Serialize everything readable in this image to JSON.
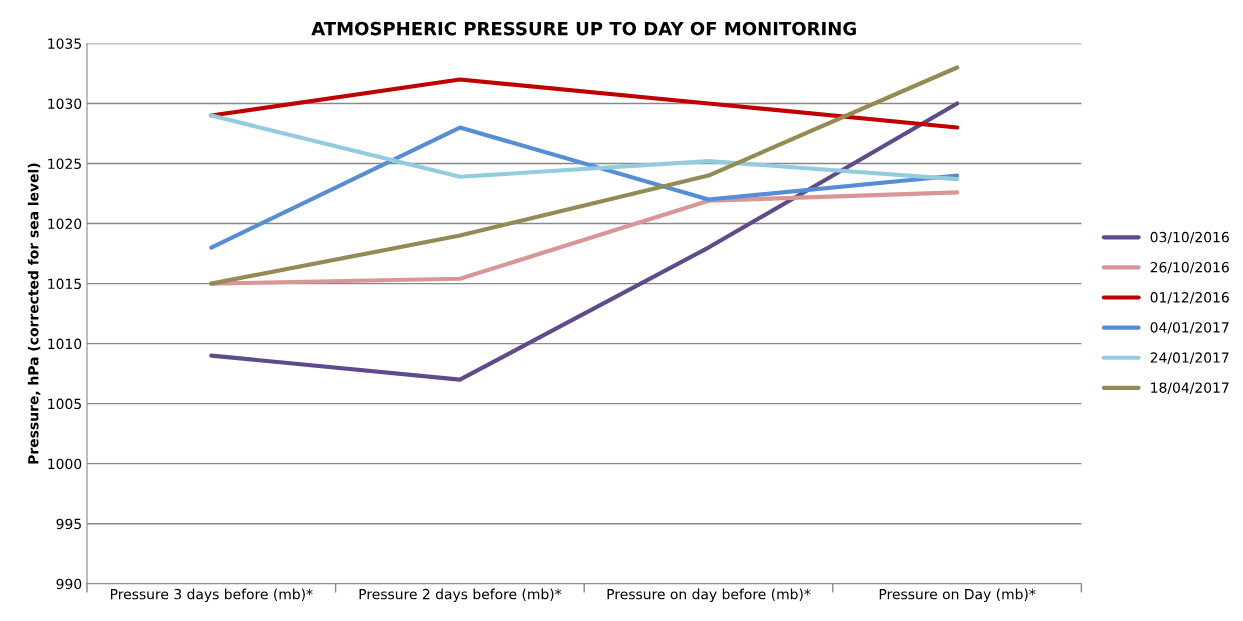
{
  "chart_data": {
    "type": "line",
    "title": "ATMOSPHERIC PRESSURE UP TO DAY OF MONITORING",
    "ylabel": "Pressure, hPa (corrected for sea level)",
    "categories": [
      "Pressure 3 days before (mb)*",
      "Pressure 2 days before (mb)*",
      "Pressure on day before (mb)*",
      "Pressure on Day (mb)*"
    ],
    "series": [
      {
        "name": "03/10/2016",
        "color": "#5f4b8b",
        "values": [
          1009,
          1007,
          1018,
          1030
        ]
      },
      {
        "name": "26/10/2016",
        "color": "#d99694",
        "values": [
          1015,
          1015.4,
          1021.9,
          1022.6
        ]
      },
      {
        "name": "01/12/2016",
        "color": "#c00000",
        "values": [
          1029,
          1032,
          1030,
          1028
        ]
      },
      {
        "name": "04/01/2017",
        "color": "#558ed5",
        "values": [
          1018,
          1028,
          1022,
          1024
        ]
      },
      {
        "name": "24/01/2017",
        "color": "#93cddd",
        "values": [
          1029,
          1023.9,
          1025.2,
          1023.7
        ]
      },
      {
        "name": "18/04/2017",
        "color": "#948a54",
        "values": [
          1015,
          1019,
          1024,
          1033
        ]
      }
    ],
    "ylim": [
      990,
      1035
    ],
    "yticks": [
      990,
      995,
      1000,
      1005,
      1010,
      1015,
      1020,
      1025,
      1030,
      1035
    ],
    "grid": "y",
    "legend": "right",
    "marker": "none",
    "line_style": "solid"
  }
}
